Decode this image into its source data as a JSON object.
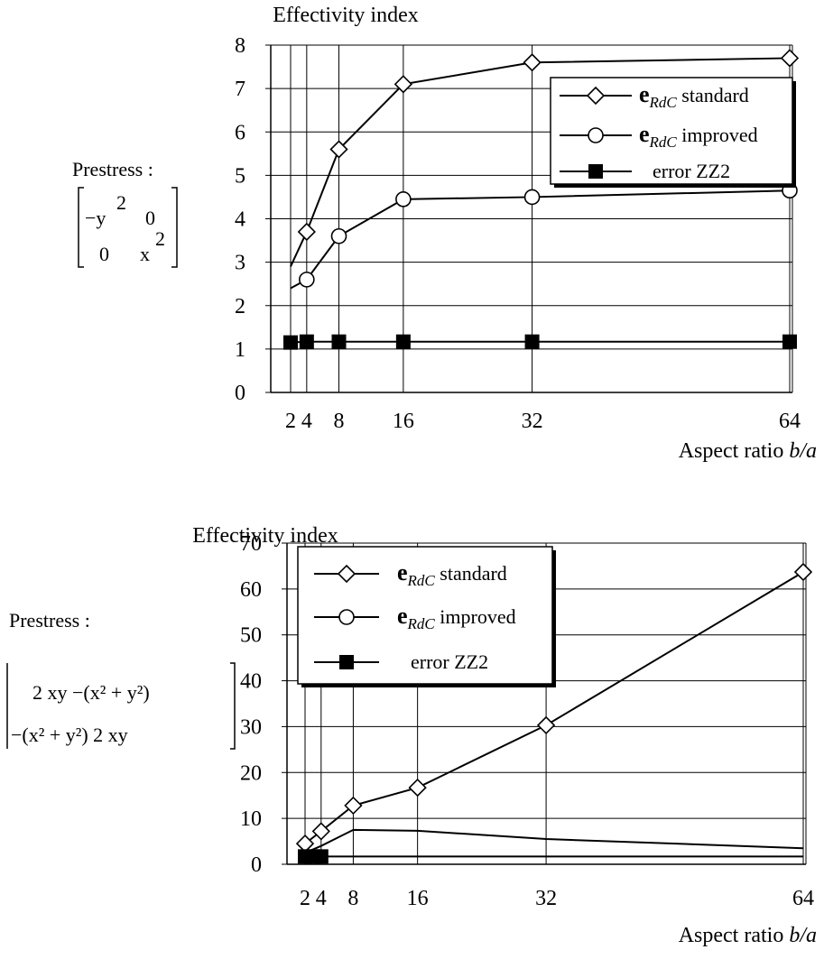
{
  "chart_data": [
    {
      "type": "line",
      "ylabel": "Effectivity index",
      "xlabel": "Aspect ratio",
      "xlabel_var": "b/a",
      "x_ticks": [
        2,
        4,
        8,
        16,
        32,
        64
      ],
      "ylim": [
        0,
        8
      ],
      "y_ticks": [
        0,
        1,
        2,
        3,
        4,
        5,
        6,
        7,
        8
      ],
      "grid": true,
      "legend_position": "top-right",
      "prestress": {
        "label": "Prestress :",
        "matrix": [
          [
            "−y",
            "2",
            "0",
            ""
          ],
          [
            "0",
            "",
            "x",
            "2"
          ]
        ]
      },
      "series": [
        {
          "legend_bold": "e",
          "legend_sub": "RdC",
          "legend_text": "standard",
          "marker": "diamond",
          "x": [
            2,
            4,
            8,
            16,
            32,
            64
          ],
          "values": [
            2.9,
            3.7,
            5.6,
            7.1,
            7.6,
            7.7
          ],
          "marked_from": 1
        },
        {
          "legend_bold": "e",
          "legend_sub": "RdC",
          "legend_text": "improved",
          "marker": "circle",
          "x": [
            2,
            4,
            8,
            16,
            32,
            64
          ],
          "values": [
            2.4,
            2.6,
            3.6,
            4.45,
            4.5,
            4.65
          ],
          "marked_from": 1
        },
        {
          "legend_bold": "",
          "legend_sub": "",
          "legend_text": "error ZZ2",
          "marker": "square",
          "x": [
            2,
            4,
            8,
            16,
            32,
            64
          ],
          "values": [
            1.15,
            1.17,
            1.17,
            1.17,
            1.17,
            1.17
          ],
          "marked_from": 0
        }
      ]
    },
    {
      "type": "line",
      "ylabel": "Effectivity index",
      "xlabel": "Aspect ratio",
      "xlabel_var": "b/a",
      "x_ticks": [
        2,
        4,
        8,
        16,
        32,
        64
      ],
      "ylim": [
        0,
        70
      ],
      "y_ticks": [
        0,
        10,
        20,
        30,
        40,
        50,
        60,
        70
      ],
      "grid": true,
      "legend_position": "top-left",
      "prestress": {
        "label": "Prestress :",
        "matrix_rows": [
          "2 xy    −(x² + y²)",
          "−(x² + y²)    2 xy"
        ]
      },
      "series": [
        {
          "legend_bold": "e",
          "legend_sub": "RdC",
          "legend_text": "standard",
          "marker": "diamond",
          "x": [
            2,
            4,
            8,
            16,
            32,
            64
          ],
          "values": [
            4.5,
            7.2,
            12.8,
            16.7,
            30.3,
            63.7
          ],
          "marked_from": 0
        },
        {
          "legend_bold": "e",
          "legend_sub": "RdC",
          "legend_text": "improved",
          "marker": "none",
          "x": [
            2,
            4,
            8,
            16,
            32,
            64
          ],
          "values": [
            2.5,
            4.0,
            7.5,
            7.3,
            5.5,
            3.5
          ],
          "marked_from": 0
        },
        {
          "legend_bold": "",
          "legend_sub": "",
          "legend_text": "error ZZ2",
          "marker": "square",
          "x": [
            2,
            3,
            4,
            8,
            16,
            32,
            64
          ],
          "values": [
            1.7,
            1.7,
            1.7,
            1.7,
            1.7,
            1.7,
            1.7
          ],
          "marked_from": 0,
          "marked_until": 3
        }
      ]
    }
  ]
}
